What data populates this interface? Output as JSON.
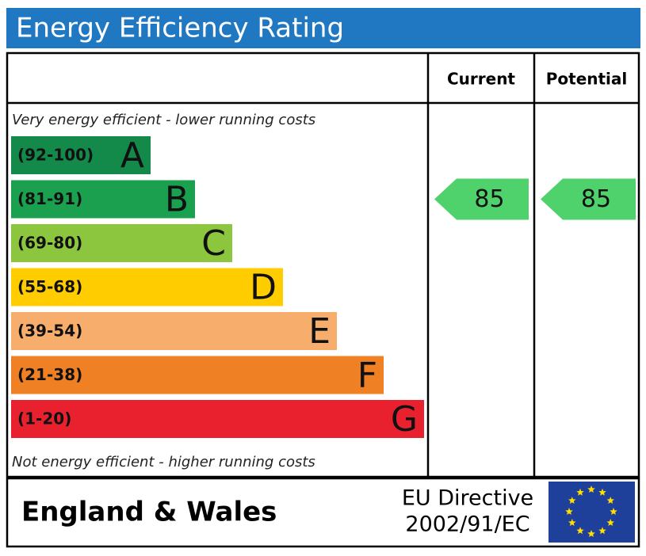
{
  "title": "Energy Efficiency Rating",
  "headers": {
    "current": "Current",
    "potential": "Potential"
  },
  "top_note": "Very energy efficient - lower running costs",
  "bottom_note": "Not energy efficient - higher running costs",
  "bands": [
    {
      "range": "(92-100)",
      "letter": "A",
      "color": "#138a4a"
    },
    {
      "range": "(81-91)",
      "letter": "B",
      "color": "#1ba04f"
    },
    {
      "range": "(69-80)",
      "letter": "C",
      "color": "#8cc63f"
    },
    {
      "range": "(55-68)",
      "letter": "D",
      "color": "#ffcc00"
    },
    {
      "range": "(39-54)",
      "letter": "E",
      "color": "#f7ad6b"
    },
    {
      "range": "(21-38)",
      "letter": "F",
      "color": "#ef8023"
    },
    {
      "range": "(1-20)",
      "letter": "G",
      "color": "#e9212e"
    }
  ],
  "current": 85,
  "potential": 85,
  "rating_color": "#4fd16b",
  "region": "England & Wales",
  "directive": [
    "EU Directive",
    "2002/91/EC"
  ]
}
